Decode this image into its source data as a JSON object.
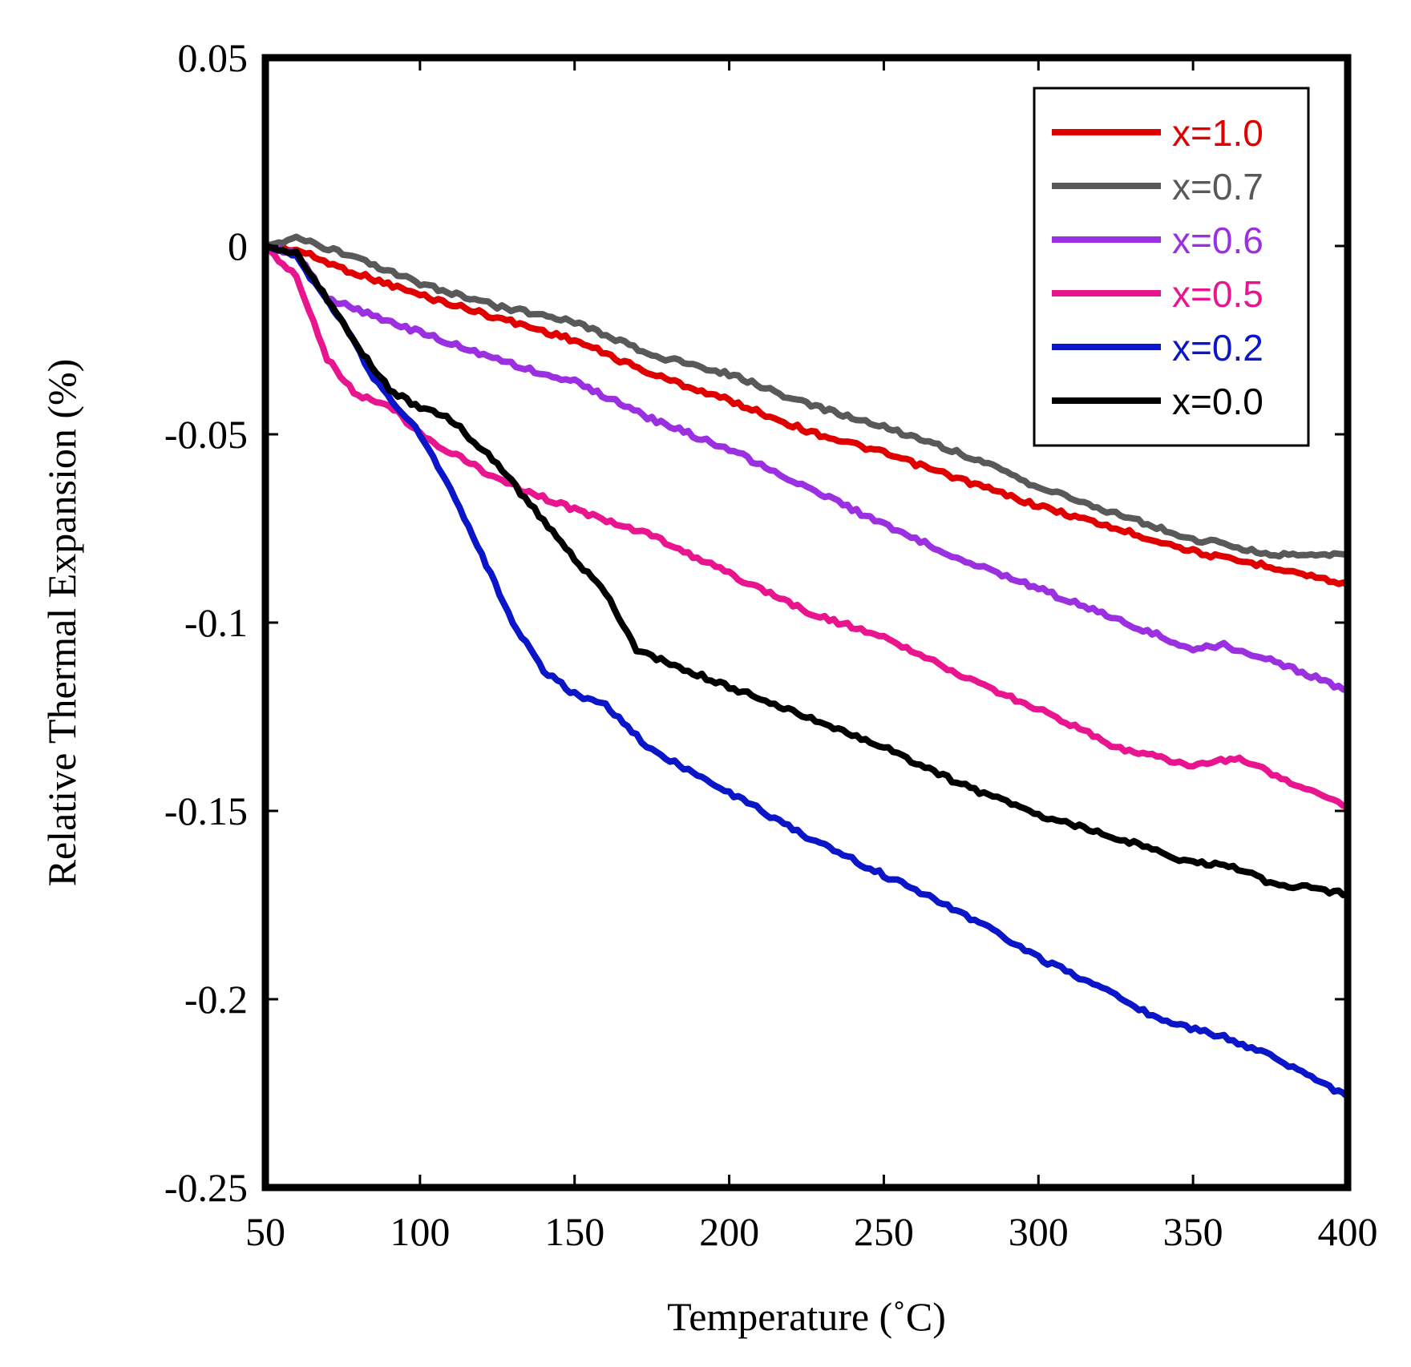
{
  "chart_data": {
    "type": "line",
    "title": "",
    "xlabel": "Temperature (˚C)",
    "ylabel": "Relative Thermal Expansion (%)",
    "xlim": [
      50,
      400
    ],
    "ylim": [
      -0.25,
      0.05
    ],
    "x_ticks": [
      50,
      100,
      150,
      200,
      250,
      300,
      350,
      400
    ],
    "x_tick_labels": [
      "50",
      "100",
      "150",
      "200",
      "250",
      "300",
      "350",
      "400"
    ],
    "y_ticks": [
      0.05,
      0,
      -0.05,
      -0.1,
      -0.15,
      -0.2,
      -0.25
    ],
    "y_tick_labels": [
      "0.05",
      "0",
      "-0.05",
      "-0.1",
      "-0.15",
      "-0.2",
      "-0.25"
    ],
    "grid": false,
    "legend_position": "top-right",
    "series": [
      {
        "name": "x=1.0",
        "color": "#e00000",
        "points": [
          [
            50,
            0
          ],
          [
            60,
            -0.001
          ],
          [
            75,
            -0.006
          ],
          [
            100,
            -0.013
          ],
          [
            125,
            -0.019
          ],
          [
            150,
            -0.025
          ],
          [
            175,
            -0.034
          ],
          [
            200,
            -0.041
          ],
          [
            225,
            -0.049
          ],
          [
            250,
            -0.055
          ],
          [
            275,
            -0.062
          ],
          [
            300,
            -0.069
          ],
          [
            325,
            -0.075
          ],
          [
            350,
            -0.081
          ],
          [
            360,
            -0.083
          ],
          [
            375,
            -0.085
          ],
          [
            400,
            -0.09
          ]
        ]
      },
      {
        "name": "x=0.7",
        "color": "#595959",
        "points": [
          [
            50,
            0
          ],
          [
            60,
            0.002
          ],
          [
            75,
            -0.002
          ],
          [
            100,
            -0.01
          ],
          [
            125,
            -0.016
          ],
          [
            150,
            -0.02
          ],
          [
            175,
            -0.029
          ],
          [
            200,
            -0.034
          ],
          [
            225,
            -0.042
          ],
          [
            250,
            -0.048
          ],
          [
            275,
            -0.055
          ],
          [
            300,
            -0.064
          ],
          [
            325,
            -0.071
          ],
          [
            350,
            -0.078
          ],
          [
            360,
            -0.079
          ],
          [
            375,
            -0.082
          ],
          [
            400,
            -0.082
          ]
        ]
      },
      {
        "name": "x=0.6",
        "color": "#9b30e0",
        "points": [
          [
            50,
            0
          ],
          [
            60,
            -0.002
          ],
          [
            70,
            -0.014
          ],
          [
            80,
            -0.017
          ],
          [
            100,
            -0.023
          ],
          [
            125,
            -0.03
          ],
          [
            140,
            -0.034
          ],
          [
            150,
            -0.036
          ],
          [
            175,
            -0.046
          ],
          [
            200,
            -0.054
          ],
          [
            225,
            -0.064
          ],
          [
            250,
            -0.074
          ],
          [
            275,
            -0.083
          ],
          [
            300,
            -0.091
          ],
          [
            325,
            -0.099
          ],
          [
            350,
            -0.107
          ],
          [
            360,
            -0.106
          ],
          [
            375,
            -0.11
          ],
          [
            400,
            -0.118
          ]
        ]
      },
      {
        "name": "x=0.5",
        "color": "#e8158f",
        "points": [
          [
            50,
            0
          ],
          [
            60,
            -0.008
          ],
          [
            70,
            -0.03
          ],
          [
            80,
            -0.04
          ],
          [
            90,
            -0.042
          ],
          [
            100,
            -0.05
          ],
          [
            125,
            -0.062
          ],
          [
            150,
            -0.07
          ],
          [
            175,
            -0.077
          ],
          [
            200,
            -0.087
          ],
          [
            225,
            -0.097
          ],
          [
            250,
            -0.104
          ],
          [
            275,
            -0.114
          ],
          [
            300,
            -0.123
          ],
          [
            325,
            -0.133
          ],
          [
            350,
            -0.138
          ],
          [
            365,
            -0.136
          ],
          [
            380,
            -0.142
          ],
          [
            400,
            -0.149
          ]
        ]
      },
      {
        "name": "x=0.2",
        "color": "#0a16c8",
        "points": [
          [
            50,
            0
          ],
          [
            60,
            -0.003
          ],
          [
            75,
            -0.02
          ],
          [
            85,
            -0.035
          ],
          [
            100,
            -0.05
          ],
          [
            110,
            -0.065
          ],
          [
            120,
            -0.082
          ],
          [
            130,
            -0.1
          ],
          [
            140,
            -0.113
          ],
          [
            150,
            -0.119
          ],
          [
            160,
            -0.122
          ],
          [
            170,
            -0.13
          ],
          [
            175,
            -0.134
          ],
          [
            200,
            -0.145
          ],
          [
            225,
            -0.157
          ],
          [
            250,
            -0.167
          ],
          [
            275,
            -0.177
          ],
          [
            300,
            -0.189
          ],
          [
            325,
            -0.199
          ],
          [
            340,
            -0.206
          ],
          [
            360,
            -0.21
          ],
          [
            375,
            -0.215
          ],
          [
            400,
            -0.226
          ]
        ]
      },
      {
        "name": "x=0.0",
        "color": "#000000",
        "points": [
          [
            50,
            0
          ],
          [
            60,
            -0.002
          ],
          [
            70,
            -0.014
          ],
          [
            80,
            -0.027
          ],
          [
            90,
            -0.038
          ],
          [
            100,
            -0.043
          ],
          [
            110,
            -0.046
          ],
          [
            125,
            -0.058
          ],
          [
            140,
            -0.073
          ],
          [
            150,
            -0.083
          ],
          [
            160,
            -0.092
          ],
          [
            170,
            -0.107
          ],
          [
            175,
            -0.109
          ],
          [
            200,
            -0.117
          ],
          [
            225,
            -0.125
          ],
          [
            250,
            -0.133
          ],
          [
            275,
            -0.143
          ],
          [
            300,
            -0.151
          ],
          [
            325,
            -0.157
          ],
          [
            350,
            -0.164
          ],
          [
            360,
            -0.164
          ],
          [
            375,
            -0.169
          ],
          [
            400,
            -0.172
          ]
        ]
      }
    ]
  }
}
